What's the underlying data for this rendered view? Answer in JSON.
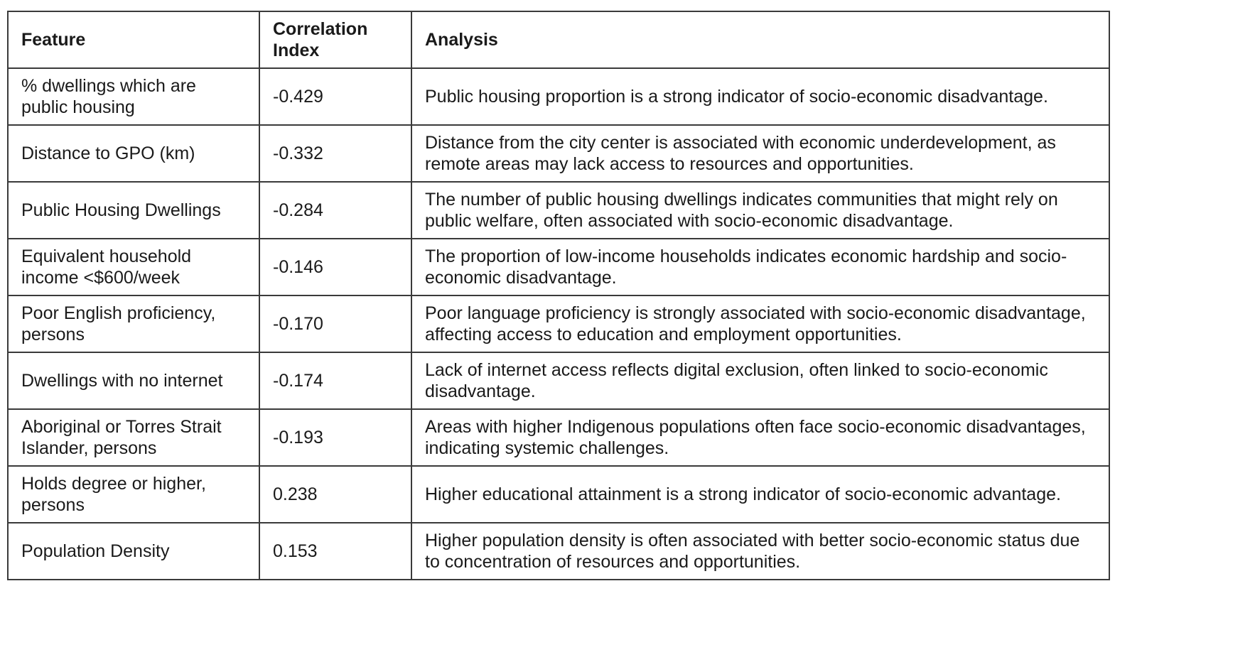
{
  "table": {
    "headers": [
      "Feature",
      "Correlation Index",
      "Analysis"
    ],
    "rows": [
      {
        "feature": "% dwellings which are public housing",
        "correlation": "-0.429",
        "analysis": "Public housing proportion is a strong indicator of socio-economic disadvantage."
      },
      {
        "feature": "Distance to GPO (km)",
        "correlation": "-0.332",
        "analysis": "Distance from the city center is associated with economic underdevelopment, as remote areas may lack access to resources and opportunities."
      },
      {
        "feature": "Public Housing Dwellings",
        "correlation": "-0.284",
        "analysis": "The number of public housing dwellings indicates communities that might rely on public welfare, often associated with socio-economic disadvantage."
      },
      {
        "feature": "Equivalent household income <$600/week",
        "correlation": "-0.146",
        "analysis": "The proportion of low-income households indicates economic hardship and socio-economic disadvantage."
      },
      {
        "feature": "Poor English proficiency, persons",
        "correlation": "-0.170",
        "analysis": "Poor language proficiency is strongly associated with socio-economic disadvantage, affecting access to education and employment opportunities."
      },
      {
        "feature": "Dwellings with no internet",
        "correlation": "-0.174",
        "analysis": "Lack of internet access reflects digital exclusion, often linked to socio-economic disadvantage."
      },
      {
        "feature": "Aboriginal or Torres Strait Islander, persons",
        "correlation": "-0.193",
        "analysis": "Areas with higher Indigenous populations often face socio-economic disadvantages, indicating systemic challenges."
      },
      {
        "feature": "Holds degree or higher, persons",
        "correlation": "0.238",
        "analysis": "Higher educational attainment is a strong indicator of socio-economic advantage."
      },
      {
        "feature": "Population Density",
        "correlation": "0.153",
        "analysis": "Higher population density is often associated with better socio-economic status due to concentration of resources and opportunities."
      }
    ]
  }
}
